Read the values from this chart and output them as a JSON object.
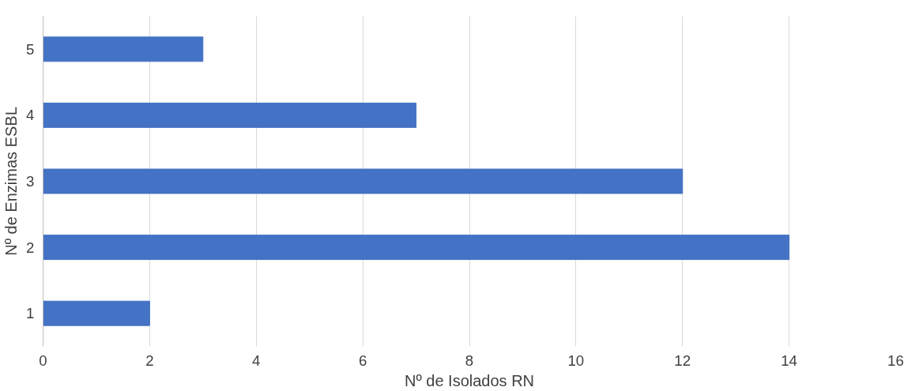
{
  "chart_data": {
    "type": "bar",
    "orientation": "horizontal",
    "xlabel": "Nº de Isolados RN",
    "ylabel": "Nº de Enzimas ESBL",
    "categories": [
      "5",
      "4",
      "3",
      "2",
      "1"
    ],
    "values": [
      3,
      7,
      12,
      14,
      2
    ],
    "color": "#4472c4",
    "xlim": [
      0,
      16
    ],
    "xticks": [
      0,
      2,
      4,
      6,
      8,
      10,
      12,
      14,
      16
    ],
    "grid": "x"
  }
}
